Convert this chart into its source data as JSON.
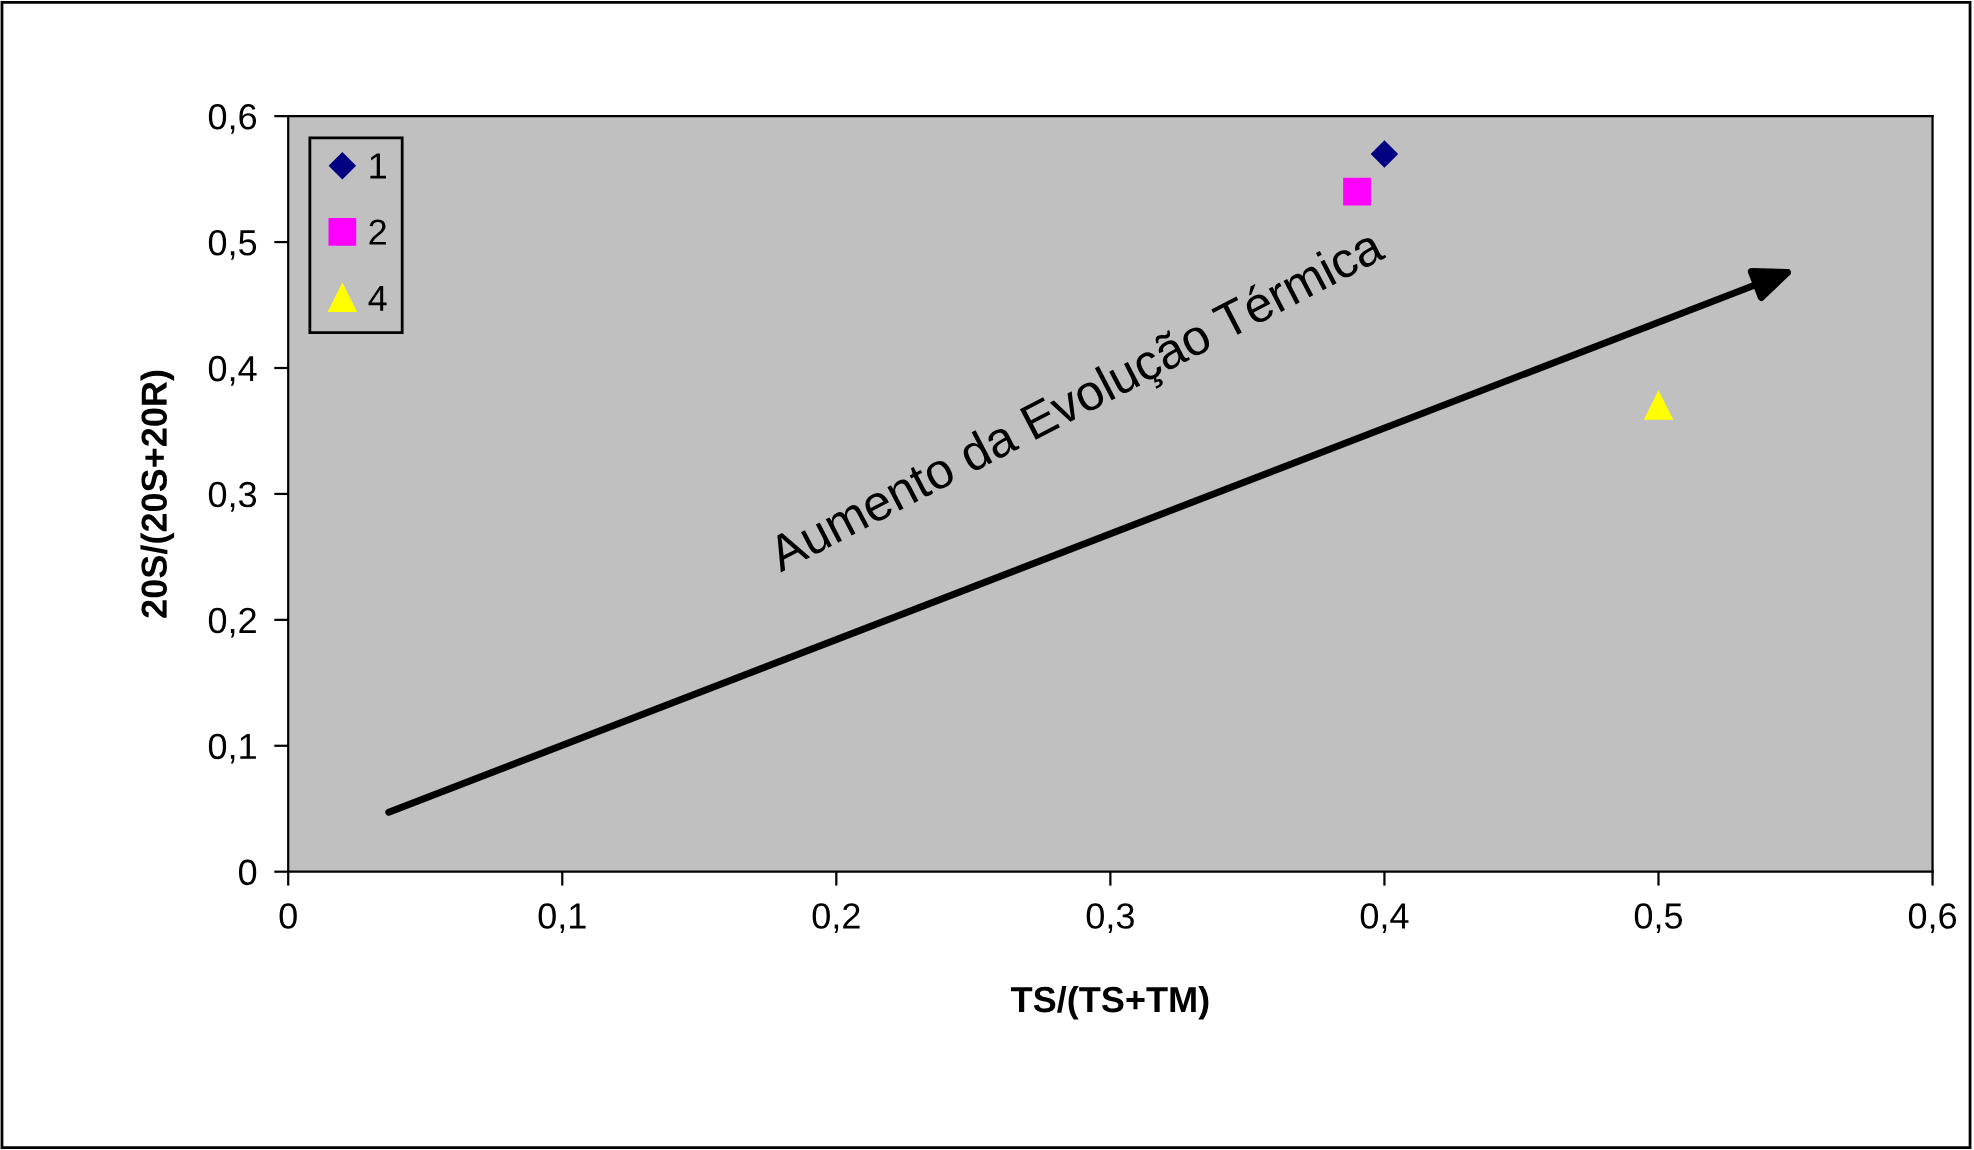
{
  "chart_data": {
    "type": "scatter",
    "xlabel": "TS/(TS+TM)",
    "ylabel": "20S/(20S+20R)",
    "series": [
      {
        "name": "1",
        "color": "#000080",
        "marker": "diamond",
        "x": [
          0.4
        ],
        "values": [
          0.57
        ]
      },
      {
        "name": "2",
        "color": "#ff00ff",
        "marker": "square",
        "x": [
          0.39
        ],
        "values": [
          0.54
        ]
      },
      {
        "name": "4",
        "color": "#ffff00",
        "marker": "triangle",
        "x": [
          0.5
        ],
        "values": [
          0.37
        ]
      }
    ],
    "annotations": [
      "Aumento da Evolução Térmica"
    ],
    "xlim": [
      0,
      0.6
    ],
    "xticks": [
      {
        "value": 0,
        "label": "0"
      },
      {
        "value": 0.1,
        "label": "0,1"
      },
      {
        "value": 0.2,
        "label": "0,2"
      },
      {
        "value": 0.3,
        "label": "0,3"
      },
      {
        "value": 0.4,
        "label": "0,4"
      },
      {
        "value": 0.5,
        "label": "0,5"
      },
      {
        "value": 0.6,
        "label": "0,6"
      }
    ],
    "ylim": [
      0,
      0.6
    ],
    "yticks": [
      {
        "value": 0,
        "label": "0"
      },
      {
        "value": 0.1,
        "label": "0,1"
      },
      {
        "value": 0.2,
        "label": "0,2"
      },
      {
        "value": 0.3,
        "label": "0,3"
      },
      {
        "value": 0.4,
        "label": "0,4"
      },
      {
        "value": 0.5,
        "label": "0,5"
      },
      {
        "value": 0.6,
        "label": "0,6"
      }
    ],
    "legend": "top left",
    "grid": false
  }
}
